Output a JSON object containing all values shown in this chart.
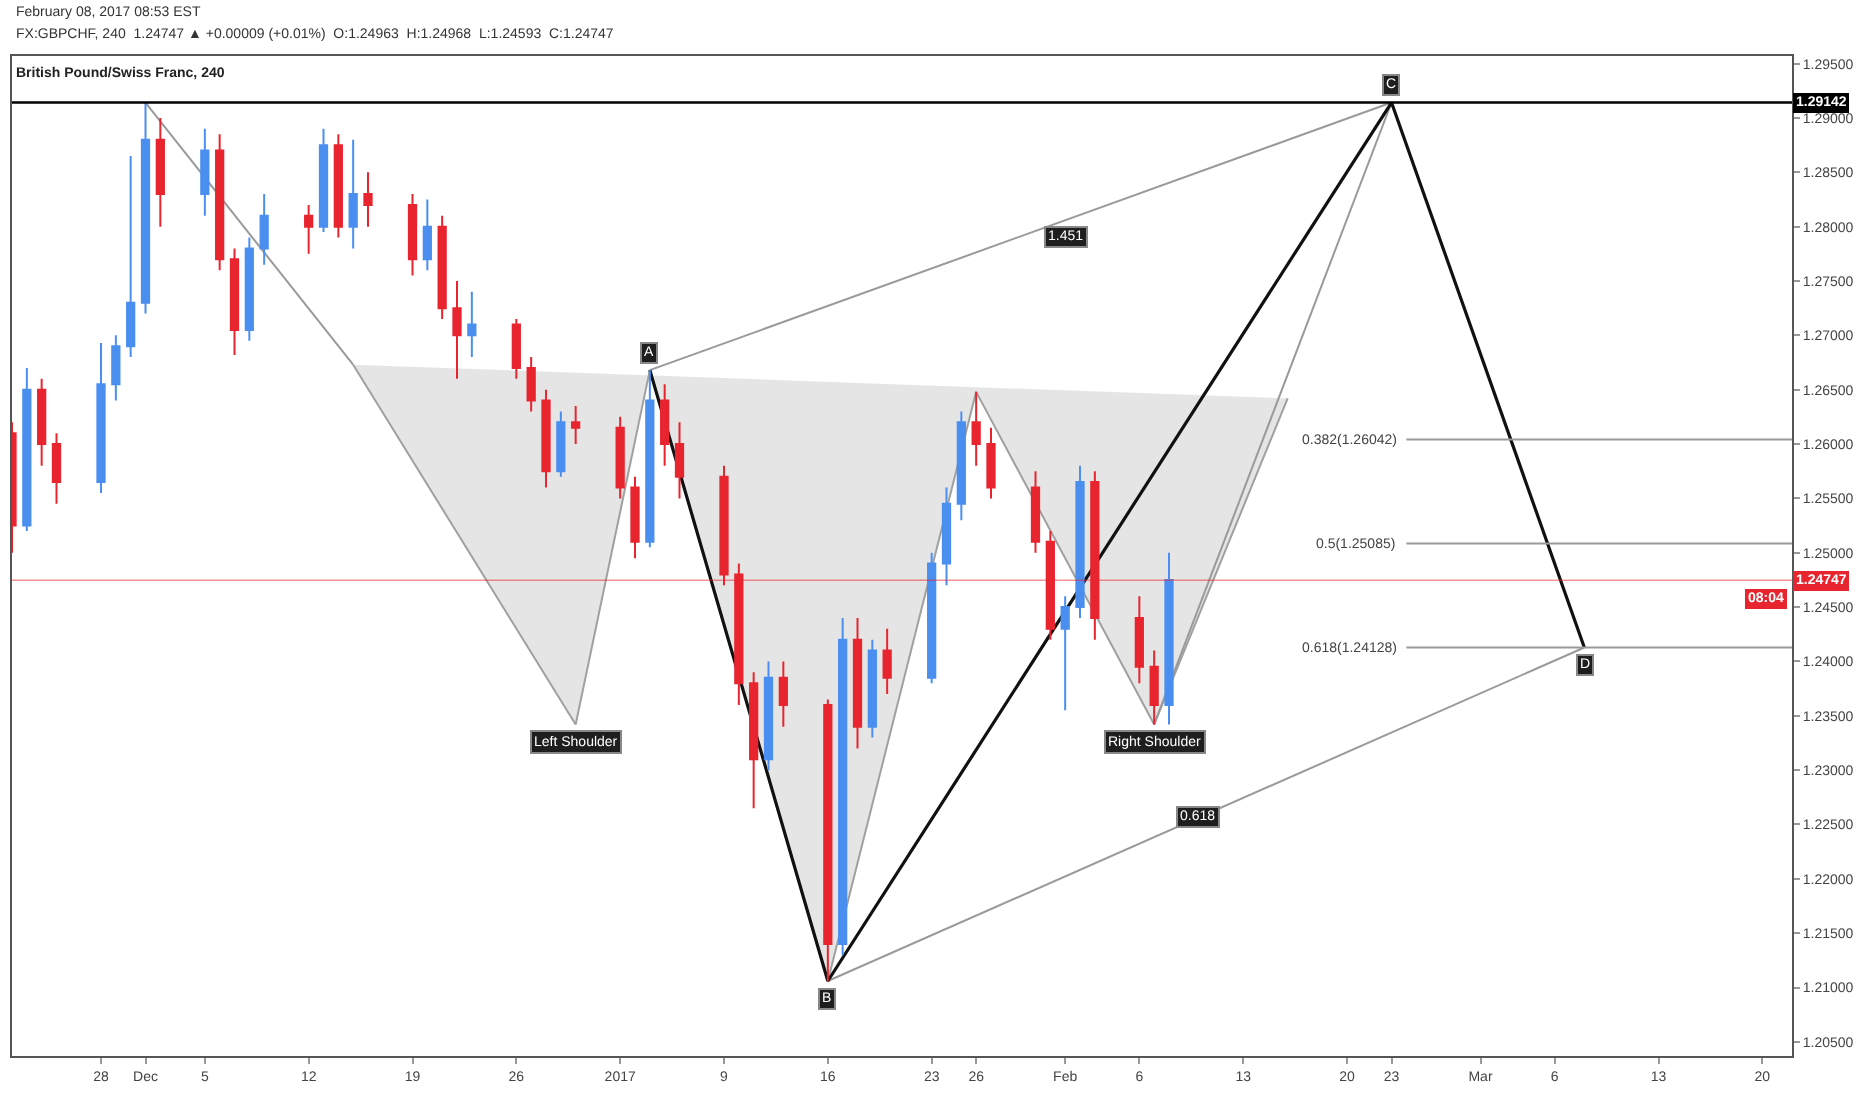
{
  "chart_data": {
    "type": "candlestick",
    "title": "British Pound/Swiss Franc, 240",
    "annotations": [
      "February 08, 2017 08:53 EST",
      "FX:GBPCHF, 240  1.24747 ▲ +0.00009 (+0.01%)  O:1.24963  H:1.24968  L:1.24593  C:1.24747",
      "08:04",
      {
        "text": "A",
        "x": "2017-01-04",
        "y": 1.2668
      },
      {
        "text": "B",
        "x": "2017-01-16",
        "y": 1.2106
      },
      {
        "text": "C",
        "x": "2017-02-23",
        "y": 1.29142
      },
      {
        "text": "D",
        "x": "2017-03-08",
        "y": 1.24128
      },
      {
        "text": "1.451",
        "x": "2017-02-01",
        "y": 1.279
      },
      {
        "text": "0.618",
        "x": "2017-02-10",
        "y": 1.2257
      },
      {
        "text": "Left Shoulder",
        "x": "2016-12-30",
        "y": 1.2342
      },
      {
        "text": "Right Shoulder",
        "x": "2017-02-07",
        "y": 1.2342
      }
    ],
    "series": [
      {
        "type": "area",
        "color": "#d4d4d4",
        "x": [
          "2016-12-15",
          "2016-12-30",
          "2017-01-04",
          "2017-01-16",
          "2017-01-26",
          "2017-02-07",
          "2017-02-16"
        ],
        "values": [
          1.2673,
          1.2342,
          1.2668,
          1.2106,
          1.2648,
          1.2342,
          1.2642
        ]
      },
      {
        "type": "line",
        "color": "#9a9a9a",
        "x": [
          "2016-12-01",
          "2016-12-15"
        ],
        "values": [
          1.2914,
          1.2673
        ]
      },
      {
        "type": "line",
        "color": "#9a9a9a",
        "x": [
          "2017-01-04",
          "2017-02-23"
        ],
        "values": [
          1.2668,
          1.29142
        ]
      },
      {
        "type": "line",
        "color": "#9a9a9a",
        "x": [
          "2017-01-16",
          "2017-03-08"
        ],
        "values": [
          1.2106,
          1.24128
        ]
      },
      {
        "type": "line",
        "color": "#9a9a9a",
        "x": [
          "2017-02-07",
          "2017-02-23"
        ],
        "values": [
          1.2342,
          1.29142
        ]
      },
      {
        "type": "line",
        "color": "#111111",
        "x": [
          "2017-01-04",
          "2017-01-16",
          "2017-02-23",
          "2017-03-08"
        ],
        "values": [
          1.2668,
          1.2106,
          1.29142,
          1.24128
        ]
      },
      {
        "type": "line",
        "name": "0.382(1.26042)",
        "color": "#9a9a9a",
        "x": [
          "2017-02-24",
          "2017-03-22"
        ],
        "values": [
          1.26042,
          1.26042
        ]
      },
      {
        "type": "line",
        "name": "0.5(1.25085)",
        "color": "#9a9a9a",
        "x": [
          "2017-02-24",
          "2017-03-22"
        ],
        "values": [
          1.25085,
          1.25085
        ]
      },
      {
        "type": "line",
        "name": "0.618(1.24128)",
        "color": "#9a9a9a",
        "x": [
          "2017-02-24",
          "2017-03-22"
        ],
        "values": [
          1.24128,
          1.24128
        ]
      },
      {
        "x": [
          "2016-11-22",
          "2016-11-23",
          "2016-11-24",
          "2016-11-25",
          "2016-11-28",
          "2016-11-29",
          "2016-11-30",
          "2016-12-01",
          "2016-12-02",
          "2016-12-05",
          "2016-12-06",
          "2016-12-07",
          "2016-12-08",
          "2016-12-09",
          "2016-12-12",
          "2016-12-13",
          "2016-12-14",
          "2016-12-15",
          "2016-12-16",
          "2016-12-19",
          "2016-12-20",
          "2016-12-21",
          "2016-12-22",
          "2016-12-23",
          "2016-12-26",
          "2016-12-27",
          "2016-12-28",
          "2016-12-29",
          "2016-12-30",
          "2017-01-02",
          "2017-01-03",
          "2017-01-04",
          "2017-01-05",
          "2017-01-06",
          "2017-01-09",
          "2017-01-10",
          "2017-01-11",
          "2017-01-12",
          "2017-01-13",
          "2017-01-16",
          "2017-01-17",
          "2017-01-18",
          "2017-01-19",
          "2017-01-20",
          "2017-01-23",
          "2017-01-24",
          "2017-01-25",
          "2017-01-26",
          "2017-01-27",
          "2017-01-30",
          "2017-01-31",
          "2017-02-01",
          "2017-02-02",
          "2017-02-03",
          "2017-02-06",
          "2017-02-07",
          "2017-02-08"
        ],
        "ohlc": [
          [
            1.261,
            1.262,
            1.25,
            1.2525
          ],
          [
            1.2525,
            1.267,
            1.252,
            1.265
          ],
          [
            1.265,
            1.266,
            1.258,
            1.26
          ],
          [
            1.26,
            1.261,
            1.2545,
            1.2565
          ],
          [
            1.2565,
            1.2693,
            1.2555,
            1.2655
          ],
          [
            1.2655,
            1.27,
            1.264,
            1.269
          ],
          [
            1.269,
            1.2865,
            1.268,
            1.273
          ],
          [
            1.273,
            1.2914,
            1.272,
            1.288
          ],
          [
            1.288,
            1.29,
            1.28,
            1.283
          ],
          [
            1.283,
            1.289,
            1.281,
            1.287
          ],
          [
            1.287,
            1.2885,
            1.276,
            1.277
          ],
          [
            1.277,
            1.278,
            1.2682,
            1.2705
          ],
          [
            1.2705,
            1.279,
            1.2695,
            1.278
          ],
          [
            1.278,
            1.283,
            1.2765,
            1.281
          ],
          [
            1.281,
            1.282,
            1.2775,
            1.28
          ],
          [
            1.28,
            1.289,
            1.2795,
            1.2875
          ],
          [
            1.2875,
            1.2885,
            1.279,
            1.28
          ],
          [
            1.28,
            1.288,
            1.278,
            1.283
          ],
          [
            1.283,
            1.285,
            1.28,
            1.282
          ],
          [
            1.282,
            1.283,
            1.2755,
            1.277
          ],
          [
            1.277,
            1.2825,
            1.276,
            1.28
          ],
          [
            1.28,
            1.281,
            1.2715,
            1.2725
          ],
          [
            1.2725,
            1.275,
            1.266,
            1.27
          ],
          [
            1.27,
            1.274,
            1.268,
            1.271
          ],
          [
            1.271,
            1.2715,
            1.266,
            1.267
          ],
          [
            1.267,
            1.268,
            1.263,
            1.264
          ],
          [
            1.264,
            1.265,
            1.256,
            1.2575
          ],
          [
            1.2575,
            1.263,
            1.257,
            1.262
          ],
          [
            1.262,
            1.2635,
            1.26,
            1.2615
          ],
          [
            1.2615,
            1.2625,
            1.255,
            1.256
          ],
          [
            1.256,
            1.257,
            1.2495,
            1.251
          ],
          [
            1.251,
            1.2668,
            1.2505,
            1.264
          ],
          [
            1.264,
            1.2655,
            1.258,
            1.26
          ],
          [
            1.26,
            1.262,
            1.255,
            1.257
          ],
          [
            1.257,
            1.258,
            1.247,
            1.248
          ],
          [
            1.248,
            1.249,
            1.236,
            1.238
          ],
          [
            1.238,
            1.239,
            1.2265,
            1.231
          ],
          [
            1.231,
            1.24,
            1.23,
            1.2385
          ],
          [
            1.2385,
            1.24,
            1.234,
            1.236
          ],
          [
            1.236,
            1.2365,
            1.2106,
            1.214
          ],
          [
            1.214,
            1.244,
            1.213,
            1.242
          ],
          [
            1.242,
            1.244,
            1.232,
            1.234
          ],
          [
            1.234,
            1.242,
            1.233,
            1.241
          ],
          [
            1.241,
            1.243,
            1.237,
            1.2385
          ],
          [
            1.2385,
            1.25,
            1.238,
            1.249
          ],
          [
            1.249,
            1.256,
            1.247,
            1.2545
          ],
          [
            1.2545,
            1.263,
            1.253,
            1.262
          ],
          [
            1.262,
            1.2648,
            1.258,
            1.26
          ],
          [
            1.26,
            1.2615,
            1.255,
            1.256
          ],
          [
            1.256,
            1.2575,
            1.25,
            1.251
          ],
          [
            1.251,
            1.252,
            1.242,
            1.243
          ],
          [
            1.243,
            1.246,
            1.2355,
            1.245
          ],
          [
            1.245,
            1.258,
            1.244,
            1.2565
          ],
          [
            1.2565,
            1.2575,
            1.242,
            1.244
          ],
          [
            1.244,
            1.246,
            1.238,
            1.2395
          ],
          [
            1.2395,
            1.241,
            1.2342,
            1.236
          ],
          [
            1.236,
            1.25,
            1.2342,
            1.2475
          ]
        ],
        "colors": [
          "#e8252f",
          "#4a8ff0",
          "#e8252f",
          "#e8252f",
          "#4a8ff0",
          "#4a8ff0",
          "#4a8ff0",
          "#4a8ff0",
          "#e8252f",
          "#4a8ff0",
          "#e8252f",
          "#e8252f",
          "#4a8ff0",
          "#4a8ff0",
          "#e8252f",
          "#4a8ff0",
          "#e8252f",
          "#4a8ff0",
          "#e8252f",
          "#e8252f",
          "#4a8ff0",
          "#e8252f",
          "#e8252f",
          "#4a8ff0",
          "#e8252f",
          "#e8252f",
          "#e8252f",
          "#4a8ff0",
          "#e8252f",
          "#e8252f",
          "#e8252f",
          "#4a8ff0",
          "#e8252f",
          "#e8252f",
          "#e8252f",
          "#e8252f",
          "#e8252f",
          "#4a8ff0",
          "#e8252f",
          "#e8252f",
          "#4a8ff0",
          "#e8252f",
          "#4a8ff0",
          "#e8252f",
          "#4a8ff0",
          "#4a8ff0",
          "#4a8ff0",
          "#e8252f",
          "#e8252f",
          "#e8252f",
          "#e8252f",
          "#4a8ff0",
          "#4a8ff0",
          "#e8252f",
          "#e8252f",
          "#e8252f",
          "#4a8ff0"
        ]
      }
    ],
    "ref_lines": [
      {
        "axis": "y",
        "value": 1.29142,
        "label": "1.29142",
        "color": "#000000"
      },
      {
        "axis": "y",
        "value": 1.24747,
        "label": "1.24747",
        "color": "#e8252f"
      }
    ],
    "xlim": [
      "2016-11-22",
      "2017-03-22"
    ],
    "xticks": [
      {
        "value": "2016-11-28",
        "label": "28"
      },
      {
        "value": "2016-12-01",
        "label": "Dec"
      },
      {
        "value": "2016-12-05",
        "label": "5"
      },
      {
        "value": "2016-12-12",
        "label": "12"
      },
      {
        "value": "2016-12-19",
        "label": "19"
      },
      {
        "value": "2016-12-26",
        "label": "26"
      },
      {
        "value": "2017-01-02",
        "label": "2017"
      },
      {
        "value": "2017-01-09",
        "label": "9"
      },
      {
        "value": "2017-01-16",
        "label": "16"
      },
      {
        "value": "2017-01-23",
        "label": "23"
      },
      {
        "value": "2017-01-26",
        "label": "26"
      },
      {
        "value": "2017-02-01",
        "label": "Feb"
      },
      {
        "value": "2017-02-06",
        "label": "6"
      },
      {
        "value": "2017-02-13",
        "label": "13"
      },
      {
        "value": "2017-02-20",
        "label": "20"
      },
      {
        "value": "2017-02-23",
        "label": "23"
      },
      {
        "value": "2017-03-01",
        "label": "Mar"
      },
      {
        "value": "2017-03-06",
        "label": "6"
      },
      {
        "value": "2017-03-13",
        "label": "13"
      },
      {
        "value": "2017-03-20",
        "label": "20"
      }
    ],
    "ylim": [
      1.2037,
      1.2957
    ],
    "yticks": [
      {
        "value": 1.205,
        "label": "1.20500"
      },
      {
        "value": 1.21,
        "label": "1.21000"
      },
      {
        "value": 1.215,
        "label": "1.21500"
      },
      {
        "value": 1.22,
        "label": "1.22000"
      },
      {
        "value": 1.225,
        "label": "1.22500"
      },
      {
        "value": 1.23,
        "label": "1.23000"
      },
      {
        "value": 1.235,
        "label": "1.23500"
      },
      {
        "value": 1.24,
        "label": "1.24000"
      },
      {
        "value": 1.245,
        "label": "1.24500"
      },
      {
        "value": 1.25,
        "label": "1.25000"
      },
      {
        "value": 1.255,
        "label": "1.25500"
      },
      {
        "value": 1.26,
        "label": "1.26000"
      },
      {
        "value": 1.265,
        "label": "1.26500"
      },
      {
        "value": 1.27,
        "label": "1.27000"
      },
      {
        "value": 1.275,
        "label": "1.27500"
      },
      {
        "value": 1.28,
        "label": "1.28000"
      },
      {
        "value": 1.285,
        "label": "1.28500"
      },
      {
        "value": 1.29,
        "label": "1.29000"
      },
      {
        "value": 1.295,
        "label": "1.29500"
      }
    ]
  }
}
